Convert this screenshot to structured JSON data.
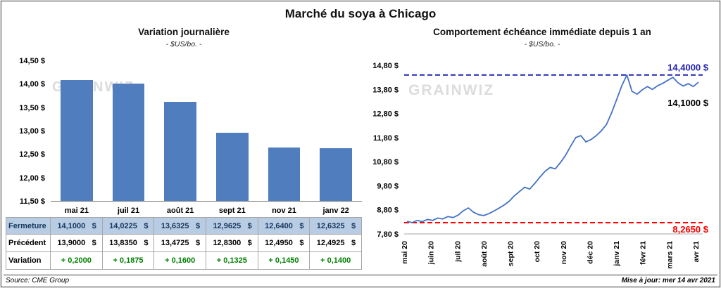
{
  "page_title": "Marché du soya à Chicago",
  "watermark": "GRAINWIZ",
  "left_chart": {
    "title": "Variation journalière",
    "subtitle": "- $US/bo. -",
    "y_tick_labels": [
      "14,50 $",
      "14,00 $",
      "13,50 $",
      "13,00 $",
      "12,50 $",
      "12,00 $",
      "11,50 $"
    ]
  },
  "right_chart": {
    "title": "Comportement échéance immédiate depuis 1 an",
    "subtitle": "- $US/bo. -",
    "y_tick_labels": [
      "14,80 $",
      "13,80 $",
      "12,80 $",
      "11,80 $",
      "10,80 $",
      "9,80 $",
      "8,80 $",
      "7,80 $"
    ],
    "high_label": "14,4000 $",
    "last_label": "14,1000 $",
    "low_label": "8,2650 $"
  },
  "table": {
    "columns": [
      "mai 21",
      "juil 21",
      "août 21",
      "sept 21",
      "nov 21",
      "janv 22"
    ],
    "rows": [
      {
        "label": "Fermeture",
        "style": "close",
        "currency": "$",
        "values": [
          "14,1000",
          "14,0225",
          "13,6325",
          "12,9625",
          "12,6400",
          "12,6325"
        ]
      },
      {
        "label": "Précédent",
        "style": "previous",
        "currency": "$",
        "values": [
          "13,9000",
          "13,8350",
          "13,4725",
          "12,8300",
          "12,4950",
          "12,4925"
        ]
      },
      {
        "label": "Variation",
        "style": "variation",
        "currency": "",
        "values": [
          "+ 0,2000",
          "+ 0,1875",
          "+ 0,1600",
          "+ 0,1325",
          "+ 0,1450",
          "+ 0,1400"
        ]
      }
    ]
  },
  "footer": {
    "source": "Source: CME Group",
    "updated": "Mise à jour: mer 14 avr 2021"
  },
  "chart_data": [
    {
      "type": "bar",
      "title": "Variation journalière",
      "ylabel": "$US/bo.",
      "categories": [
        "mai 21",
        "juil 21",
        "août 21",
        "sept 21",
        "nov 21",
        "janv 22"
      ],
      "values": [
        14.1,
        14.0225,
        13.6325,
        12.9625,
        12.64,
        12.6325
      ],
      "ylim": [
        11.5,
        14.5
      ],
      "grid": false,
      "bar_color": "#4f7dbe"
    },
    {
      "type": "line",
      "title": "Comportement échéance immédiate depuis 1 an",
      "ylabel": "$US/bo.",
      "x_months": [
        "mai 20",
        "juin 20",
        "juil 20",
        "août 20",
        "sept 20",
        "oct 20",
        "nov 20",
        "déc 20",
        "janv 21",
        "févr 21",
        "mars 21",
        "avr 21"
      ],
      "ylim": [
        7.8,
        14.8
      ],
      "y_ticks": [
        14.8,
        13.8,
        12.8,
        11.8,
        10.8,
        9.8,
        8.8,
        7.8
      ],
      "grid": false,
      "line_color": "#4472c4",
      "values": [
        8.32,
        8.27,
        8.36,
        8.31,
        8.4,
        8.36,
        8.46,
        8.42,
        8.52,
        8.48,
        8.58,
        8.76,
        8.88,
        8.7,
        8.6,
        8.56,
        8.64,
        8.75,
        8.87,
        9.0,
        9.16,
        9.38,
        9.56,
        9.74,
        9.66,
        9.9,
        10.16,
        10.4,
        10.56,
        10.5,
        10.76,
        11.06,
        11.44,
        11.8,
        11.88,
        11.62,
        11.72,
        11.88,
        12.08,
        12.34,
        12.82,
        13.38,
        13.95,
        14.4,
        13.72,
        13.6,
        13.78,
        13.92,
        13.8,
        13.95,
        14.05,
        14.18,
        14.3,
        14.08,
        13.94,
        14.04,
        13.92,
        14.1
      ],
      "high_line": {
        "value": 14.4,
        "color": "#2323b4"
      },
      "low_line": {
        "value": 8.265,
        "color": "#fe0000"
      },
      "last_value": 14.1
    }
  ]
}
